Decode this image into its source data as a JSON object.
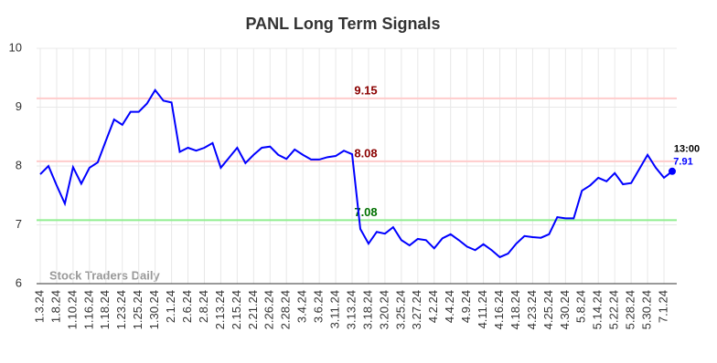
{
  "chart_data": {
    "type": "line",
    "title": "PANL Long Term Signals",
    "categories": [
      "1.3.24",
      null,
      "1.8.24",
      null,
      "1.10.24",
      null,
      "1.16.24",
      null,
      "1.18.24",
      null,
      "1.23.24",
      null,
      "1.25.24",
      null,
      "1.30.24",
      null,
      "2.1.24",
      null,
      "2.6.24",
      null,
      "2.8.24",
      null,
      "2.13.24",
      null,
      "2.15.24",
      null,
      "2.21.24",
      null,
      "2.26.24",
      null,
      "2.28.24",
      null,
      "3.4.24",
      null,
      "3.6.24",
      null,
      "3.11.24",
      null,
      "3.13.24",
      null,
      "3.18.24",
      null,
      "3.20.24",
      null,
      "3.25.24",
      null,
      "3.27.24",
      null,
      "4.2.24",
      null,
      "4.4.24",
      null,
      "4.9.24",
      null,
      "4.11.24",
      null,
      "4.16.24",
      null,
      "4.18.24",
      null,
      "4.23.24",
      null,
      "4.25.24",
      null,
      "4.30.24",
      null,
      "5.8.24",
      null,
      "5.14.24",
      null,
      "5.22.24",
      null,
      "5.28.24",
      null,
      "5.30.24",
      null,
      "7.1.24",
      null
    ],
    "series": [
      {
        "color": "#0000ff",
        "values": [
          7.86,
          8.0,
          7.67,
          7.36,
          7.98,
          7.7,
          7.97,
          8.06,
          8.43,
          8.79,
          8.7,
          8.92,
          8.92,
          9.06,
          9.29,
          9.11,
          9.08,
          8.24,
          8.31,
          8.26,
          8.31,
          8.39,
          7.97,
          8.14,
          8.31,
          8.05,
          8.19,
          8.31,
          8.33,
          8.19,
          8.12,
          8.28,
          8.19,
          8.11,
          8.11,
          8.15,
          8.17,
          8.26,
          8.2,
          6.93,
          6.68,
          6.88,
          6.85,
          6.96,
          6.74,
          6.65,
          6.76,
          6.74,
          6.6,
          6.77,
          6.84,
          6.74,
          6.63,
          6.57,
          6.67,
          6.57,
          6.45,
          6.51,
          6.68,
          6.81,
          6.79,
          6.78,
          6.84,
          7.13,
          7.11,
          7.11,
          7.58,
          7.67,
          7.8,
          7.74,
          7.88,
          7.69,
          7.71,
          7.95,
          8.19,
          7.97,
          7.8,
          7.91
        ]
      }
    ],
    "last_label": "13:00",
    "levels": [
      {
        "value": 9.15,
        "color": "#ffcccc",
        "label_color": "#8b0000"
      },
      {
        "value": 8.08,
        "color": "#ffcccc",
        "label_color": "#8b0000"
      },
      {
        "value": 7.08,
        "color": "#90ee90",
        "label_color": "#007000"
      }
    ],
    "watermark": "Stock Traders Daily",
    "ylim": [
      6,
      10
    ],
    "yticks": [
      6,
      7,
      8,
      9,
      10
    ],
    "grid": true
  }
}
